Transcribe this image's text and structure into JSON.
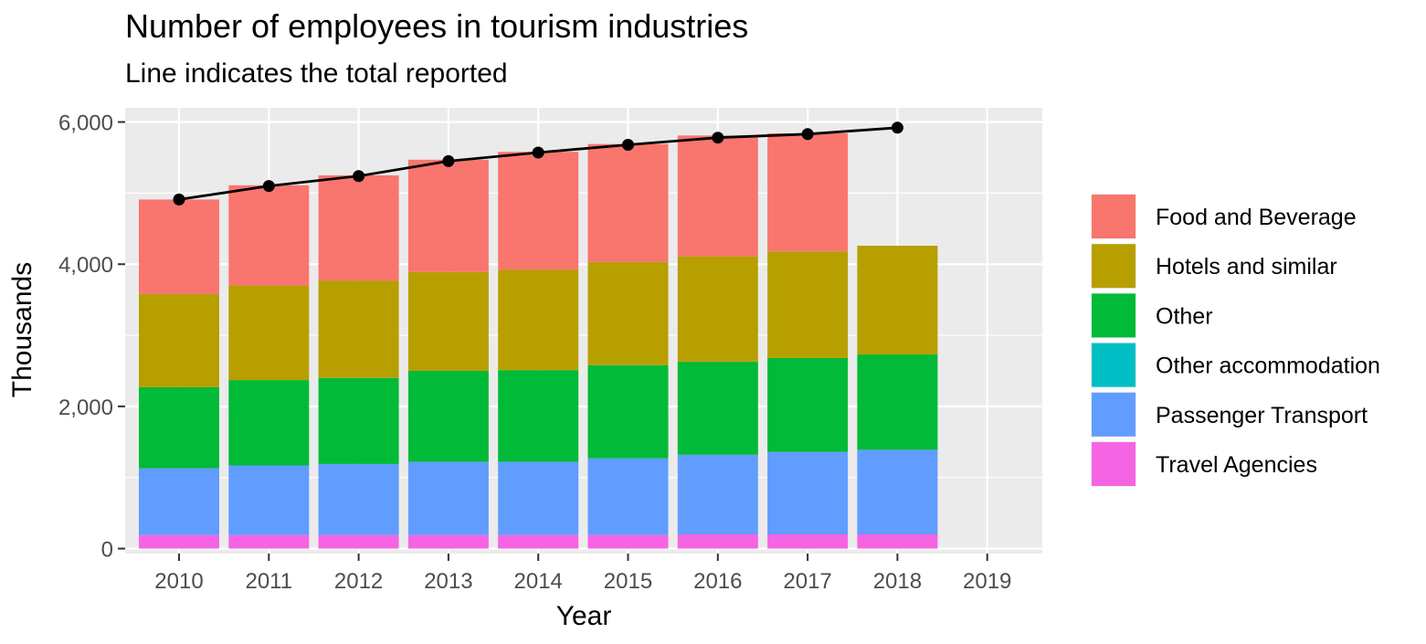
{
  "chart_data": {
    "type": "bar",
    "stacked": true,
    "title": "Number of employees in tourism industries",
    "subtitle": "Line indicates the total reported",
    "xlabel": "Year",
    "ylabel": "Thousands",
    "categories": [
      "2010",
      "2011",
      "2012",
      "2013",
      "2014",
      "2015",
      "2016",
      "2017",
      "2018",
      "2019"
    ],
    "ylim": [
      -70,
      6200
    ],
    "yticks": [
      0,
      2000,
      4000,
      6000
    ],
    "ytick_labels": [
      "0",
      "2,000",
      "4,000",
      "6,000"
    ],
    "grid": true,
    "legend_position": "right",
    "series": [
      {
        "name": "Travel Agencies",
        "color": "#F564E3",
        "values": [
          190,
          190,
          190,
          190,
          190,
          190,
          200,
          200,
          200,
          null
        ]
      },
      {
        "name": "Passenger Transport",
        "color": "#619CFF",
        "values": [
          940,
          980,
          1000,
          1030,
          1030,
          1080,
          1120,
          1160,
          1190,
          null
        ]
      },
      {
        "name": "Other accommodation",
        "color": "#00BFC4",
        "values": [
          0,
          0,
          0,
          0,
          0,
          0,
          0,
          0,
          0,
          null
        ]
      },
      {
        "name": "Other",
        "color": "#00BA38",
        "values": [
          1140,
          1200,
          1210,
          1280,
          1290,
          1310,
          1310,
          1320,
          1340,
          null
        ]
      },
      {
        "name": "Hotels and similar",
        "color": "#B79F00",
        "values": [
          1310,
          1330,
          1370,
          1390,
          1410,
          1450,
          1480,
          1500,
          1530,
          null
        ]
      },
      {
        "name": "Food and Beverage",
        "color": "#F8766D",
        "values": [
          1330,
          1410,
          1480,
          1580,
          1660,
          1660,
          1700,
          1660,
          null,
          null
        ]
      }
    ],
    "total_line": {
      "color": "#000000",
      "x": [
        "2010",
        "2011",
        "2012",
        "2013",
        "2014",
        "2015",
        "2016",
        "2017",
        "2018"
      ],
      "values": [
        4910,
        5100,
        5240,
        5450,
        5570,
        5680,
        5780,
        5830,
        5920
      ]
    },
    "legend_order": [
      "Food and Beverage",
      "Hotels and similar",
      "Other",
      "Other accommodation",
      "Passenger Transport",
      "Travel Agencies"
    ]
  }
}
